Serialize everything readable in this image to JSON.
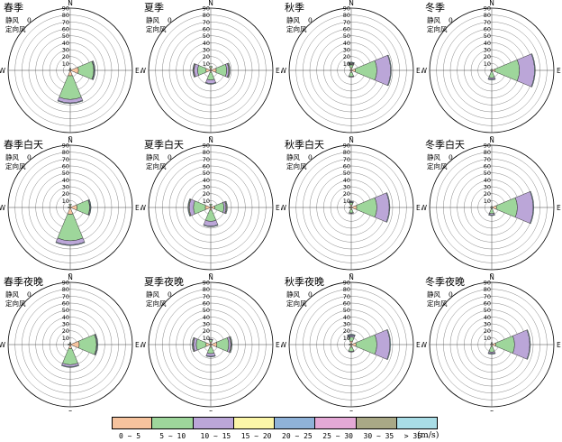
{
  "panel_note": {
    "calm_label": "静风",
    "calm_value": "0",
    "steady_label": "定向风"
  },
  "compass": {
    "n": "N",
    "s": "S",
    "e": "E",
    "w": "W"
  },
  "radial_ticks": [
    "10",
    "20",
    "30",
    "40",
    "50",
    "60",
    "70",
    "80",
    "90"
  ],
  "legend": {
    "bins": [
      {
        "label": "0 ~ 5",
        "color": "#f6c39e"
      },
      {
        "label": "5 ~ 10",
        "color": "#9ed69b"
      },
      {
        "label": "10 ~ 15",
        "color": "#bba6d8"
      },
      {
        "label": "15 ~ 20",
        "color": "#fbf6a8"
      },
      {
        "label": "20 ~ 25",
        "color": "#8fb2d8"
      },
      {
        "label": "25 ~ 30",
        "color": "#e4a9d6"
      },
      {
        "label": "30 ~ 35",
        "color": "#a9a886"
      },
      {
        "label": "> 35",
        "color": "#a9dde6"
      }
    ],
    "unit": "(m/s)"
  },
  "chart_data": [
    {
      "type": "wind-rose",
      "title": "春季",
      "rmax": 90,
      "directions": {
        "E": [
          12,
          22,
          1,
          0,
          0,
          0,
          0,
          1
        ],
        "S": [
          8,
          34,
          5,
          0,
          0,
          0,
          0,
          1
        ],
        "N": [
          2,
          1,
          0,
          0,
          0,
          0,
          0,
          0
        ],
        "W": [
          1,
          1,
          0,
          0,
          0,
          0,
          0,
          0
        ]
      }
    },
    {
      "type": "wind-rose",
      "title": "夏季",
      "rmax": 90,
      "directions": {
        "E": [
          8,
          15,
          3,
          1,
          0,
          0,
          0,
          1
        ],
        "W": [
          7,
          12,
          5,
          1,
          0,
          0,
          0,
          1
        ],
        "S": [
          3,
          11,
          5,
          0,
          0,
          0,
          0,
          1
        ],
        "N": [
          4,
          2,
          0,
          0,
          0,
          0,
          0,
          0
        ]
      }
    },
    {
      "type": "wind-rose",
      "title": "秋季",
      "rmax": 90,
      "directions": {
        "E": [
          6,
          31,
          20,
          0,
          0,
          0,
          0,
          1
        ],
        "S": [
          3,
          6,
          1,
          0,
          0,
          0,
          0,
          0
        ],
        "N": [
          4,
          4,
          1,
          1,
          1,
          0,
          0,
          1
        ],
        "W": [
          1,
          1,
          0,
          0,
          0,
          0,
          0,
          0
        ]
      }
    },
    {
      "type": "wind-rose",
      "title": "冬季",
      "rmax": 90,
      "directions": {
        "E": [
          5,
          35,
          22,
          0,
          0,
          0,
          0,
          1
        ],
        "S": [
          2,
          9,
          2,
          0,
          0,
          0,
          0,
          1
        ],
        "N": [
          1,
          1,
          0,
          0,
          0,
          0,
          0,
          0
        ],
        "W": [
          1,
          1,
          0,
          0,
          0,
          0,
          0,
          0
        ]
      }
    },
    {
      "type": "wind-rose",
      "title": "春季白天",
      "rmax": 90,
      "directions": {
        "E": [
          10,
          18,
          1,
          0,
          0,
          0,
          0,
          1
        ],
        "S": [
          10,
          38,
          6,
          0,
          0,
          0,
          0,
          1
        ],
        "N": [
          3,
          2,
          0,
          0,
          0,
          0,
          0,
          0
        ],
        "W": [
          2,
          1,
          0,
          0,
          0,
          0,
          0,
          0
        ]
      }
    },
    {
      "type": "wind-rose",
      "title": "夏季白天",
      "rmax": 90,
      "directions": {
        "E": [
          6,
          13,
          3,
          1,
          0,
          0,
          0,
          1
        ],
        "W": [
          8,
          17,
          6,
          1,
          0,
          0,
          0,
          1
        ],
        "S": [
          4,
          16,
          7,
          0,
          0,
          0,
          0,
          1
        ],
        "N": [
          3,
          2,
          0,
          0,
          0,
          0,
          0,
          0
        ]
      }
    },
    {
      "type": "wind-rose",
      "title": "秋季白天",
      "rmax": 90,
      "directions": {
        "E": [
          8,
          29,
          18,
          0,
          0,
          0,
          0,
          1
        ],
        "S": [
          3,
          5,
          1,
          0,
          0,
          0,
          0,
          0
        ],
        "N": [
          4,
          3,
          1,
          0,
          1,
          0,
          0,
          0
        ],
        "W": [
          2,
          1,
          0,
          0,
          0,
          0,
          0,
          0
        ]
      }
    },
    {
      "type": "wind-rose",
      "title": "冬季白天",
      "rmax": 90,
      "directions": {
        "E": [
          7,
          30,
          23,
          0,
          0,
          0,
          0,
          1
        ],
        "S": [
          2,
          7,
          2,
          0,
          0,
          0,
          0,
          1
        ],
        "N": [
          1,
          1,
          0,
          0,
          0,
          0,
          0,
          0
        ],
        "W": [
          1,
          1,
          0,
          0,
          0,
          0,
          0,
          0
        ]
      }
    },
    {
      "type": "wind-rose",
      "title": "春季夜晚",
      "rmax": 90,
      "directions": {
        "E": [
          13,
          25,
          1,
          0,
          0,
          0,
          0,
          1
        ],
        "S": [
          6,
          23,
          3,
          0,
          0,
          0,
          0,
          1
        ],
        "N": [
          2,
          1,
          0,
          0,
          0,
          0,
          0,
          0
        ],
        "W": [
          2,
          1,
          0,
          0,
          0,
          0,
          0,
          0
        ]
      }
    },
    {
      "type": "wind-rose",
      "title": "夏季夜晚",
      "rmax": 90,
      "directions": {
        "E": [
          9,
          17,
          3,
          1,
          0,
          0,
          0,
          1
        ],
        "W": [
          7,
          14,
          4,
          1,
          0,
          0,
          0,
          1
        ],
        "S": [
          4,
          9,
          4,
          0,
          0,
          0,
          0,
          1
        ],
        "N": [
          4,
          3,
          1,
          0,
          0,
          0,
          0,
          0
        ]
      }
    },
    {
      "type": "wind-rose",
      "title": "秋季夜晚",
      "rmax": 90,
      "directions": {
        "E": [
          7,
          30,
          19,
          0,
          0,
          0,
          0,
          1
        ],
        "S": [
          4,
          6,
          1,
          0,
          0,
          0,
          0,
          0
        ],
        "N": [
          5,
          6,
          2,
          0,
          1,
          0,
          0,
          1
        ],
        "W": [
          2,
          1,
          0,
          0,
          0,
          0,
          0,
          0
        ]
      }
    },
    {
      "type": "wind-rose",
      "title": "冬季夜晚",
      "rmax": 90,
      "directions": {
        "E": [
          6,
          27,
          22,
          0,
          0,
          0,
          0,
          1
        ],
        "S": [
          3,
          8,
          2,
          0,
          0,
          0,
          0,
          1
        ],
        "N": [
          2,
          1,
          0,
          0,
          0,
          0,
          0,
          0
        ],
        "W": [
          1,
          1,
          0,
          0,
          0,
          0,
          0,
          0
        ]
      }
    }
  ]
}
